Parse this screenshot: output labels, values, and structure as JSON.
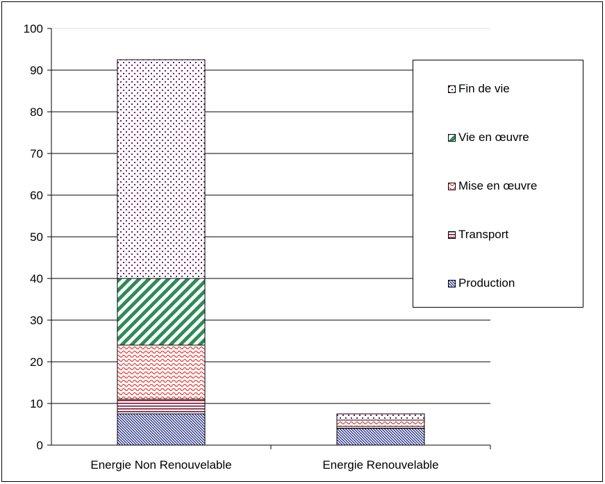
{
  "chart_data": {
    "type": "bar",
    "stacked": true,
    "categories": [
      "Energie Non Renouvelable",
      "Energie Renouvelable"
    ],
    "series": [
      {
        "name": "Production",
        "values": [
          7.5,
          4.0
        ],
        "pattern": "diagonal-hatch",
        "color": "#1a237e"
      },
      {
        "name": "Transport",
        "values": [
          3.5,
          0.5
        ],
        "pattern": "horizontal-lines",
        "color": "#7b1030"
      },
      {
        "name": "Mise en œuvre",
        "values": [
          13.0,
          1.5
        ],
        "pattern": "wave",
        "color": "#e53935"
      },
      {
        "name": "Vie en œuvre",
        "values": [
          16.0,
          0.0
        ],
        "pattern": "wide-diagonal",
        "color": "#2e8b57"
      },
      {
        "name": "Fin de vie",
        "values": [
          52.5,
          1.5
        ],
        "pattern": "dots",
        "color": "#6a1b6a"
      }
    ],
    "ylim": [
      0,
      100
    ],
    "yticks": [
      "0",
      "10",
      "20",
      "30",
      "40",
      "50",
      "60",
      "70",
      "80",
      "90",
      "100"
    ],
    "grid": true,
    "legend": {
      "placement": "right",
      "order": [
        "Fin de vie",
        "Vie en œuvre",
        "Mise en œuvre",
        "Transport",
        "Production"
      ]
    }
  }
}
